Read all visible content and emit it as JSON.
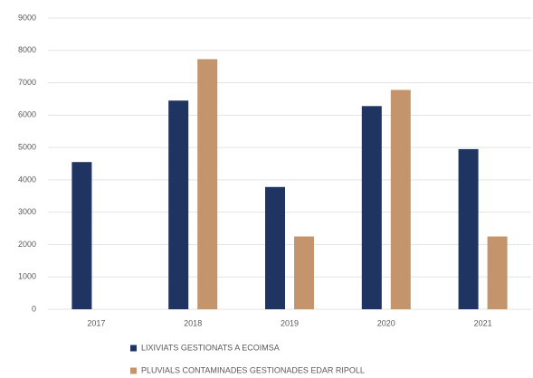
{
  "chart_data": {
    "type": "bar",
    "categories": [
      "2017",
      "2018",
      "2019",
      "2020",
      "2021"
    ],
    "series": [
      {
        "name": "LIXIVIATS GESTIONATS A ECOIMSA",
        "color": "#1f3461",
        "values": [
          4550,
          6450,
          3780,
          6280,
          4950
        ]
      },
      {
        "name": "PLUVIALS CONTAMINADES GESTIONADES EDAR RIPOLL",
        "color": "#c4946c",
        "values": [
          null,
          7730,
          2250,
          6780,
          2250
        ]
      }
    ],
    "ylim": [
      0,
      9000
    ],
    "yticks": [
      0,
      1000,
      2000,
      3000,
      4000,
      5000,
      6000,
      7000,
      8000,
      9000
    ],
    "grid": true,
    "legend": "bottom"
  }
}
